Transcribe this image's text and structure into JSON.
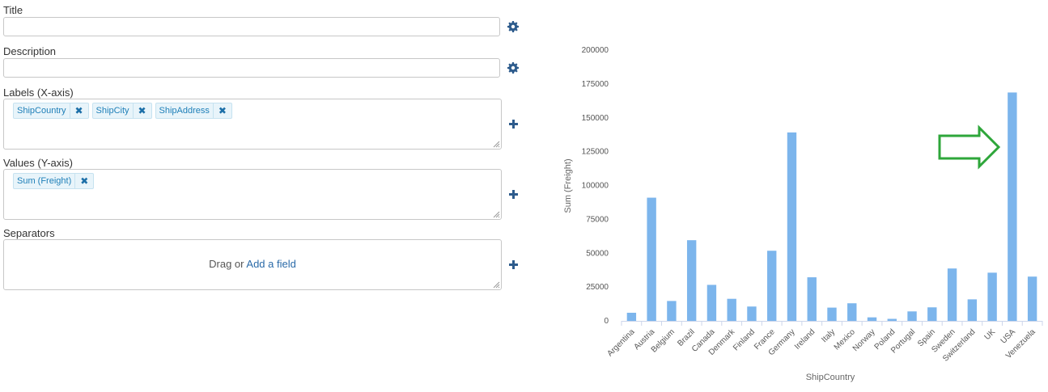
{
  "form": {
    "title_label": "Title",
    "description_label": "Description",
    "labels_label": "Labels (X-axis)",
    "labels_fields": [
      "ShipCountry",
      "ShipCity",
      "ShipAddress"
    ],
    "values_label": "Values (Y-axis)",
    "values_fields": [
      "Sum (Freight)"
    ],
    "separators_label": "Separators",
    "separators_drag": "Drag or",
    "separators_add": "Add a field",
    "remove_glyph": "✖",
    "icons": {
      "settings": "gear-icon",
      "add": "plus-icon",
      "annotation": "arrow-right-icon"
    },
    "colors": {
      "icon": "#2d5b8c",
      "bar": "#7cb5ec",
      "chip_text": "#1e7fb8",
      "annotation_arrow": "#2ea63a"
    }
  },
  "chart_data": {
    "type": "bar",
    "xlabel": "ShipCountry",
    "ylabel": "Sum (Freight)",
    "ylim": [
      0,
      200000
    ],
    "yticks": [
      0,
      25000,
      50000,
      75000,
      100000,
      125000,
      150000,
      175000,
      200000
    ],
    "grid": false,
    "categories": [
      "Argentina",
      "Austria",
      "Belgium",
      "Brazil",
      "Canada",
      "Denmark",
      "Finland",
      "France",
      "Germany",
      "Ireland",
      "Italy",
      "Mexico",
      "Norway",
      "Poland",
      "Portugal",
      "Spain",
      "Sweden",
      "Switzerland",
      "UK",
      "USA",
      "Venezuela"
    ],
    "values": [
      6000,
      91000,
      14700,
      59600,
      26600,
      16300,
      10600,
      51800,
      139200,
      32200,
      9800,
      13000,
      2600,
      1500,
      7000,
      10000,
      38700,
      15900,
      35600,
      168700,
      32700
    ]
  }
}
